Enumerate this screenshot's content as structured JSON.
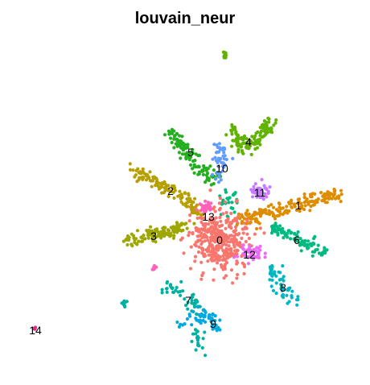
{
  "chart_data": {
    "type": "scatter",
    "title": "louvain_neur",
    "xlabel": "",
    "ylabel": "",
    "axes_visible": false,
    "grid": false,
    "legend": "none",
    "clusters": [
      {
        "label": "0",
        "color": "#F8766D",
        "center": [
          273,
          297
        ],
        "spread": [
          34,
          34
        ],
        "count": 380
      },
      {
        "label": "1",
        "color": "#DE8C00",
        "path": [
          [
            300,
            272
          ],
          [
            340,
            262
          ],
          [
            380,
            252
          ],
          [
            422,
            238
          ]
        ],
        "count": 170
      },
      {
        "label": "2",
        "color": "#B79F00",
        "path": [
          [
            168,
            212
          ],
          [
            200,
            228
          ],
          [
            228,
            245
          ],
          [
            250,
            265
          ]
        ],
        "count": 130
      },
      {
        "label": "3",
        "color": "#9EA700",
        "path": [
          [
            152,
            300
          ],
          [
            185,
            293
          ],
          [
            210,
            287
          ],
          [
            232,
            280
          ]
        ],
        "count": 120
      },
      {
        "label": "4",
        "color": "#61B300",
        "path": [
          [
            288,
            158
          ],
          [
            300,
            185
          ],
          [
            322,
            172
          ],
          [
            338,
            150
          ]
        ],
        "count": 120
      },
      {
        "label": "5",
        "color": "#23AF1F",
        "path": [
          [
            212,
            162
          ],
          [
            230,
            188
          ],
          [
            245,
            205
          ],
          [
            268,
            225
          ]
        ],
        "count": 110
      },
      {
        "label": "6",
        "color": "#00BA81",
        "path": [
          [
            338,
            283
          ],
          [
            360,
            292
          ],
          [
            383,
            303
          ],
          [
            405,
            313
          ]
        ],
        "count": 95
      },
      {
        "label": "7",
        "color": "#00B0A0",
        "path": [
          [
            204,
            357
          ],
          [
            222,
            358
          ],
          [
            236,
            372
          ],
          [
            252,
            382
          ]
        ],
        "count": 45
      },
      {
        "label": "8",
        "color": "#00B6C4",
        "path": [
          [
            336,
            334
          ],
          [
            346,
            346
          ],
          [
            356,
            366
          ],
          [
            368,
            377
          ]
        ],
        "count": 55
      },
      {
        "label": "9",
        "color": "#00A8E0",
        "path": [
          [
            218,
            406
          ],
          [
            244,
            391
          ],
          [
            262,
            392
          ],
          [
            272,
            408
          ]
        ],
        "count": 55
      },
      {
        "label": "10",
        "color": "#619CFF",
        "center": [
          275,
          200
        ],
        "spread": [
          10,
          22
        ],
        "count": 45
      },
      {
        "label": "11",
        "color": "#C77CFF",
        "center": [
          322,
          238
        ],
        "spread": [
          10,
          9
        ],
        "count": 45
      },
      {
        "label": "12",
        "color": "#E76BF3",
        "center": [
          312,
          315
        ],
        "spread": [
          13,
          9
        ],
        "count": 50
      },
      {
        "label": "13",
        "color": "#FF62BC",
        "center": [
          255,
          258
        ],
        "spread": [
          8,
          8
        ],
        "count": 25
      },
      {
        "label": "14",
        "color": "#E7298A",
        "center": [
          43,
          408
        ],
        "spread": [
          2,
          2
        ],
        "count": 4
      }
    ],
    "extra_groups": [
      {
        "name": "top-outlier",
        "color": "#61B300",
        "center": [
          280,
          68
        ],
        "spread": [
          3,
          4
        ],
        "count": 12
      },
      {
        "name": "left-small",
        "color": "#00B0A0",
        "center": [
          153,
          376
        ],
        "spread": [
          4,
          3
        ],
        "count": 10
      },
      {
        "name": "pink-small",
        "color": "#FF62BC",
        "center": [
          192,
          332
        ],
        "spread": [
          4,
          3
        ],
        "count": 8
      },
      {
        "name": "bottom-strand",
        "color": "#00B0A0",
        "path": [
          [
            245,
            408
          ],
          [
            246,
            422
          ],
          [
            246,
            436
          ]
        ],
        "count": 18
      },
      {
        "name": "center-green",
        "color": "#00BA81",
        "center": [
          285,
          250
        ],
        "spread": [
          10,
          15
        ],
        "count": 25
      }
    ]
  }
}
